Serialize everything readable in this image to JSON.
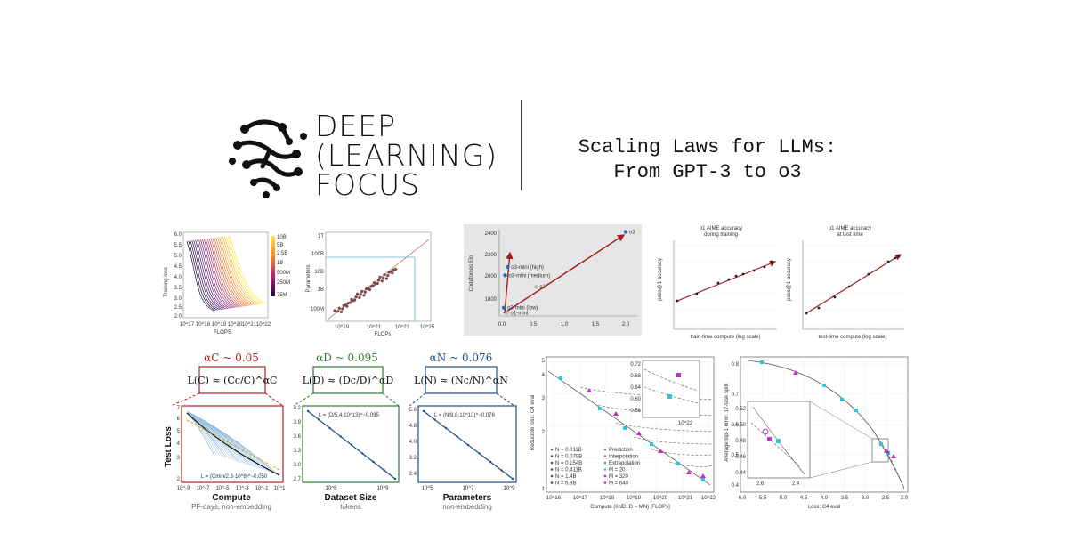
{
  "logo": {
    "line1": "DEEP",
    "line2": "(LEARNING)",
    "line3": "FOCUS",
    "icon": "brain-circuit-icon"
  },
  "title": {
    "line1": "Scaling Laws for LLMs:",
    "line2": "From GPT-3 to o3"
  },
  "fig1": {
    "ylabel": "Training loss",
    "xlabel": "FLOPS",
    "yticks": [
      "6.0",
      "5.5",
      "5.0",
      "4.5",
      "4.0",
      "3.5",
      "3.0",
      "2.5",
      "2.0"
    ],
    "xticks": [
      "10^17",
      "10^18",
      "10^19",
      "10^20",
      "10^21",
      "10^22"
    ],
    "colorbar": [
      "10B",
      "5B",
      "2.5B",
      "1B",
      "500M",
      "250M",
      "75M"
    ]
  },
  "fig2": {
    "ylabel": "Parameters",
    "xlabel": "FLOPs",
    "yticks": [
      "1T",
      "100B",
      "10B",
      "1B",
      "100M"
    ],
    "xticks": [
      "10^19",
      "10^21",
      "10^23",
      "10^25"
    ]
  },
  "fig3": {
    "ylabel": "Codeforces Elo",
    "yticks": [
      "2400",
      "2200",
      "2000",
      "1800"
    ],
    "xticks": [
      "0.0",
      "0.5",
      "1.0",
      "1.5",
      "2.0"
    ],
    "points": [
      {
        "label": "o3",
        "x": 2.0,
        "y": 2400
      },
      {
        "label": "o3-mini (high)",
        "x": 0.09,
        "y": 2073
      },
      {
        "label": "o3-mini (medium)",
        "x": 0.05,
        "y": 1997
      },
      {
        "label": "o1",
        "x": 0.55,
        "y": 1891
      },
      {
        "label": "o3-mini (low)",
        "x": 0.03,
        "y": 1697
      },
      {
        "label": "o1-mini",
        "x": 0.08,
        "y": 1650
      }
    ]
  },
  "fig4": {
    "title1": "o1 AIME accuracy",
    "title2": "during training",
    "ylabel": "pass@1 accuracy",
    "xlabel": "train-time compute (log scale)"
  },
  "fig5": {
    "title1": "o1 AIME accuracy",
    "title2": "at test time",
    "ylabel": "pass@1 accuracy",
    "xlabel": "test-time compute (log scale)"
  },
  "fig6": {
    "ylabel": "Test Loss",
    "panels": [
      {
        "alpha": "αC ~ 0.05",
        "formula": "L(C) ≈ (Cc/C)^αC",
        "legend": "L = (Cmin/2.3·10^8)^−0.050",
        "xlabel": "Compute",
        "sublabel": "PF-days, non-embedding",
        "color": "#b22222",
        "yticks": [
          "7",
          "6",
          "5",
          "4",
          "3",
          "2"
        ],
        "xticks": [
          "10^-9",
          "10^-7",
          "10^-5",
          "10^-3",
          "10^-1",
          "10^1"
        ]
      },
      {
        "alpha": "αD ~ 0.095",
        "formula": "L(D) ≈ (Dc/D)^αD",
        "legend": "L = (D/5.4·10^13)^−0.095",
        "xlabel": "Dataset Size",
        "sublabel": "tokens",
        "color": "#2e7d32",
        "yticks": [
          "4.2",
          "3.9",
          "3.6",
          "3.3",
          "3.0",
          "2.7"
        ],
        "xticks": [
          "10^8",
          "10^9"
        ]
      },
      {
        "alpha": "αN ~ 0.076",
        "formula": "L(N) ≈ (Nc/N)^αN",
        "legend": "L = (N/8.8·10^13)^−0.076",
        "xlabel": "Parameters",
        "sublabel": "non-embedding",
        "color": "#1f4e8c",
        "yticks": [
          "5.6",
          "4.8",
          "4.0",
          "3.2",
          "2.4"
        ],
        "xticks": [
          "10^5",
          "10^7",
          "10^9"
        ]
      }
    ]
  },
  "fig7": {
    "ylabel": "Reducible loss: C4 eval",
    "xlabel": "Compute (6ND, D = MN) [FLOPs]",
    "yticks": [
      "5",
      "4",
      "3",
      "2",
      "1"
    ],
    "xticks": [
      "10^16",
      "10^17",
      "10^18",
      "10^19",
      "10^20",
      "10^21",
      "10^22"
    ],
    "inset_yticks": [
      "0.72",
      "0.68",
      "0.64",
      "0.60",
      "0.56"
    ],
    "inset_xtick": "10^22",
    "legend": [
      "N = 0.011B",
      "N = 0.079B",
      "N = 0.154B",
      "N = 0.411B",
      "N = 1.4B",
      "N = 6.9B",
      "Prediction",
      "Interpolation",
      "Extrapolation",
      "M = 20",
      "M = 320",
      "M = 640"
    ]
  },
  "fig8": {
    "ylabel": "Average top-1 error: 17-task split",
    "xlabel": "Loss: C4 eval",
    "yticks": [
      "0.8",
      "0.7",
      "0.6",
      "0.5",
      "0.4"
    ],
    "xticks": [
      "6.0",
      "5.5",
      "5.0",
      "4.5",
      "4.0",
      "3.5",
      "3.0",
      "2.5",
      "2.0"
    ],
    "inset_yticks": [
      "0.52",
      "0.50",
      "0.48",
      "0.46",
      "0.44"
    ],
    "inset_xticks": [
      "2.6",
      "2.4"
    ]
  },
  "colors": {
    "accent_red": "#a31f1f",
    "accent_green": "#2e7d32",
    "accent_blue": "#1f4e8c",
    "cyan": "#33c3d6",
    "magenta": "#c22ec9",
    "grey_panel": "#e6e6e6"
  }
}
